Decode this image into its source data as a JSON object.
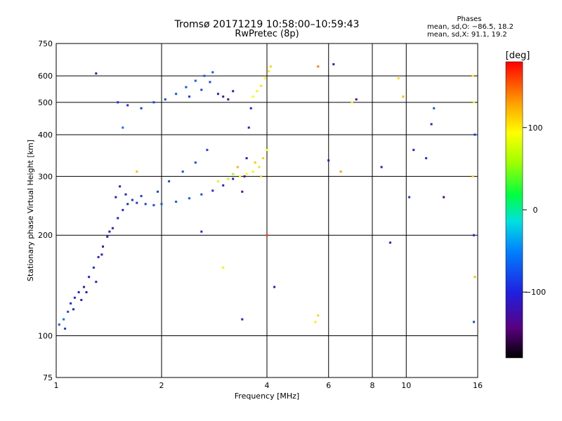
{
  "chart_data": {
    "type": "scatter",
    "title": "Tromsø 20171219 10:58:00–10:59:43",
    "subtitle": "RwPretec (8p)",
    "xlabel": "Frequency [MHz]",
    "ylabel": "Stationary phase Virtual Height [km]",
    "x_scale": "log",
    "y_scale": "log",
    "xlim": [
      1,
      16
    ],
    "ylim": [
      75,
      750
    ],
    "x_ticks": [
      1,
      2,
      4,
      6,
      8,
      10,
      16
    ],
    "x_tick_labels": [
      "1",
      "2",
      "4",
      "6",
      "8",
      "10",
      "16"
    ],
    "y_ticks": [
      75,
      100,
      200,
      300,
      400,
      500,
      600,
      750
    ],
    "y_tick_labels": [
      "75",
      "100",
      "200",
      "300",
      "400",
      "500",
      "600",
      "750"
    ],
    "grid": true,
    "stats": {
      "title": "Phases",
      "line_o": "mean, sd,O: −86.5, 18.2",
      "line_x": "mean, sd,X:  91.1, 19.2"
    },
    "colorbar": {
      "label": "[deg]",
      "range": [
        -180,
        180
      ],
      "ticks": [
        100,
        0,
        -100
      ],
      "tick_labels": [
        "100",
        "0",
        "−100"
      ]
    },
    "series": [
      {
        "points": [
          [
            1.02,
            108,
            -70
          ],
          [
            1.05,
            112,
            -60
          ],
          [
            1.08,
            118,
            -80
          ],
          [
            1.1,
            125,
            -95
          ],
          [
            1.13,
            130,
            -100
          ],
          [
            1.16,
            135,
            -105
          ],
          [
            1.2,
            140,
            -110
          ],
          [
            1.24,
            150,
            -100
          ],
          [
            1.28,
            160,
            -95
          ],
          [
            1.32,
            172,
            -100
          ],
          [
            1.36,
            185,
            -110
          ],
          [
            1.4,
            198,
            -115
          ],
          [
            1.45,
            210,
            -110
          ],
          [
            1.5,
            225,
            -105
          ],
          [
            1.55,
            238,
            -100
          ],
          [
            1.6,
            248,
            -95
          ],
          [
            1.7,
            250,
            -90
          ],
          [
            1.8,
            248,
            -85
          ],
          [
            1.9,
            246,
            -80
          ],
          [
            2.0,
            248,
            -75
          ],
          [
            2.2,
            252,
            -70
          ],
          [
            2.4,
            258,
            -72
          ],
          [
            2.6,
            265,
            -80
          ],
          [
            2.8,
            272,
            -95
          ],
          [
            3.0,
            282,
            -110
          ],
          [
            3.2,
            295,
            -120
          ],
          [
            1.06,
            105,
            -85
          ],
          [
            1.12,
            120,
            -100
          ],
          [
            1.18,
            128,
            -110
          ],
          [
            1.22,
            135,
            -115
          ],
          [
            1.3,
            145,
            -105
          ],
          [
            1.35,
            175,
            -110
          ],
          [
            1.42,
            205,
            -120
          ],
          [
            1.48,
            260,
            -110
          ],
          [
            1.52,
            280,
            -100
          ],
          [
            1.58,
            265,
            -105
          ],
          [
            1.65,
            255,
            -95
          ],
          [
            1.75,
            262,
            -90
          ],
          [
            1.95,
            270,
            -85
          ],
          [
            2.1,
            290,
            -80
          ],
          [
            2.3,
            310,
            -78
          ],
          [
            2.5,
            330,
            -82
          ],
          [
            2.7,
            360,
            -88
          ],
          [
            1.5,
            500,
            -95
          ],
          [
            1.6,
            490,
            -100
          ],
          [
            1.75,
            480,
            -90
          ],
          [
            1.9,
            500,
            -85
          ],
          [
            2.05,
            510,
            -80
          ],
          [
            2.2,
            530,
            -75
          ],
          [
            2.35,
            555,
            -72
          ],
          [
            2.5,
            580,
            -70
          ],
          [
            2.65,
            600,
            -72
          ],
          [
            2.8,
            615,
            -75
          ],
          [
            2.9,
            530,
            -110
          ],
          [
            3.0,
            520,
            -125
          ],
          [
            3.1,
            510,
            -130
          ],
          [
            3.2,
            540,
            -120
          ],
          [
            2.4,
            520,
            -90
          ],
          [
            2.6,
            545,
            -85
          ],
          [
            2.75,
            575,
            -80
          ]
        ]
      },
      {
        "points": [
          [
            3.35,
            300,
            90
          ],
          [
            3.5,
            305,
            95
          ],
          [
            3.65,
            310,
            100
          ],
          [
            3.8,
            320,
            105
          ],
          [
            3.9,
            340,
            110
          ],
          [
            3.4,
            270,
            -130
          ],
          [
            3.45,
            300,
            -120
          ],
          [
            3.5,
            340,
            -115
          ],
          [
            3.55,
            420,
            -120
          ],
          [
            3.6,
            480,
            -110
          ],
          [
            3.65,
            520,
            90
          ],
          [
            3.75,
            540,
            100
          ],
          [
            3.85,
            560,
            105
          ],
          [
            3.95,
            590,
            95
          ],
          [
            4.05,
            620,
            100
          ],
          [
            4.1,
            640,
            110
          ],
          [
            3.3,
            320,
            120
          ],
          [
            3.7,
            330,
            115
          ],
          [
            3.85,
            300,
            108
          ],
          [
            4.0,
            360,
            95
          ],
          [
            2.9,
            290,
            80
          ],
          [
            3.1,
            295,
            70
          ],
          [
            3.2,
            305,
            60
          ]
        ]
      }
    ],
    "scattered": [
      [
        1.3,
        610,
        -110
      ],
      [
        1.55,
        420,
        -60
      ],
      [
        1.7,
        310,
        120
      ],
      [
        5.6,
        640,
        140
      ],
      [
        6.2,
        650,
        -110
      ],
      [
        9.5,
        590,
        110
      ],
      [
        9.8,
        520,
        120
      ],
      [
        12,
        480,
        -70
      ],
      [
        11.8,
        430,
        -100
      ],
      [
        15.5,
        600,
        100
      ],
      [
        15.6,
        500,
        80
      ],
      [
        15.7,
        400,
        -90
      ],
      [
        15.5,
        300,
        110
      ],
      [
        15.6,
        200,
        -100
      ],
      [
        15.7,
        150,
        120
      ],
      [
        15.6,
        110,
        -80
      ],
      [
        5.6,
        115,
        110
      ],
      [
        5.5,
        110,
        100
      ],
      [
        3.4,
        112,
        -100
      ],
      [
        9.0,
        190,
        -100
      ],
      [
        11.4,
        340,
        -90
      ],
      [
        6.0,
        335,
        -110
      ],
      [
        6.5,
        310,
        130
      ],
      [
        7.0,
        500,
        90
      ],
      [
        7.2,
        510,
        -130
      ],
      [
        8.5,
        320,
        -110
      ],
      [
        10.5,
        360,
        -120
      ],
      [
        12.8,
        260,
        -140
      ],
      [
        4.2,
        140,
        -120
      ],
      [
        4.0,
        200,
        160
      ],
      [
        3.0,
        160,
        100
      ],
      [
        2.6,
        205,
        -100
      ],
      [
        10.2,
        260,
        -90
      ]
    ]
  }
}
